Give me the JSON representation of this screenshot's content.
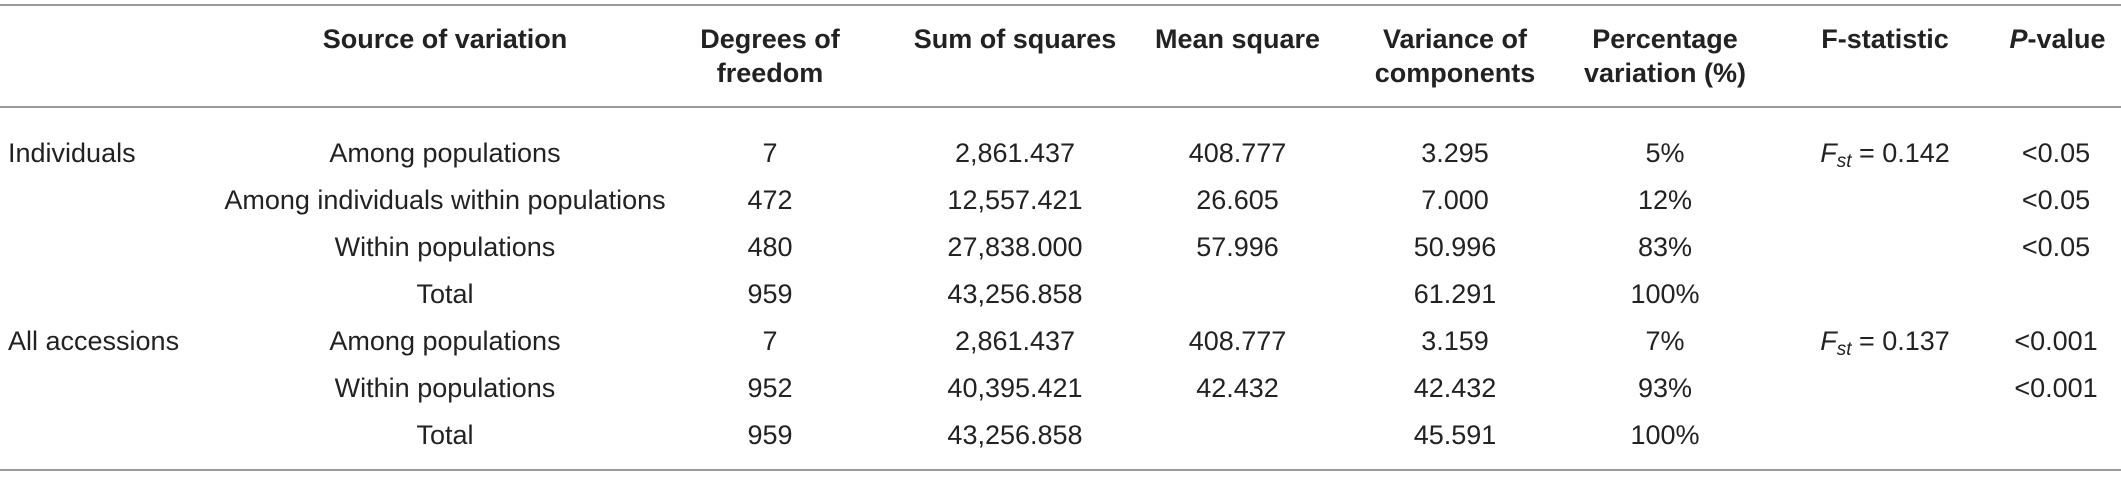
{
  "table": {
    "headers": {
      "source": [
        "Source of variation"
      ],
      "df": [
        "Degrees of",
        "freedom"
      ],
      "ss": [
        "Sum of squares"
      ],
      "ms": [
        "Mean square"
      ],
      "vc": [
        "Variance of",
        "components"
      ],
      "pv": [
        "Percentage",
        "variation (%)"
      ],
      "f": [
        "F-statistic"
      ],
      "p_italic": "P",
      "p_rest": "-value"
    },
    "rows": [
      {
        "group": "Individuals",
        "source": "Among populations",
        "df": "7",
        "ss": "2,861.437",
        "ms": "408.777",
        "vc": "3.295",
        "pv": "5%",
        "f_symbol": "F",
        "f_sub": "st",
        "f_value": " = 0.142",
        "p": "<0.05"
      },
      {
        "group": "",
        "source": "Among individuals within populations",
        "df": "472",
        "ss": "12,557.421",
        "ms": "26.605",
        "vc": "7.000",
        "pv": "12%",
        "f_symbol": "",
        "f_sub": "",
        "f_value": "",
        "p": "<0.05"
      },
      {
        "group": "",
        "source": "Within populations",
        "df": "480",
        "ss": "27,838.000",
        "ms": "57.996",
        "vc": "50.996",
        "pv": "83%",
        "f_symbol": "",
        "f_sub": "",
        "f_value": "",
        "p": "<0.05"
      },
      {
        "group": "",
        "source": "Total",
        "df": "959",
        "ss": "43,256.858",
        "ms": "",
        "vc": "61.291",
        "pv": "100%",
        "f_symbol": "",
        "f_sub": "",
        "f_value": "",
        "p": ""
      },
      {
        "group": "All accessions",
        "source": "Among populations",
        "df": "7",
        "ss": "2,861.437",
        "ms": "408.777",
        "vc": "3.159",
        "pv": "7%",
        "f_symbol": "F",
        "f_sub": "st",
        "f_value": " = 0.137",
        "p": "<0.001"
      },
      {
        "group": "",
        "source": "Within populations",
        "df": "952",
        "ss": "40,395.421",
        "ms": "42.432",
        "vc": "42.432",
        "pv": "93%",
        "f_symbol": "",
        "f_sub": "",
        "f_value": "",
        "p": "<0.001"
      },
      {
        "group": "",
        "source": "Total",
        "df": "959",
        "ss": "43,256.858",
        "ms": "",
        "vc": "45.591",
        "pv": "100%",
        "f_symbol": "",
        "f_sub": "",
        "f_value": "",
        "p": ""
      }
    ]
  }
}
